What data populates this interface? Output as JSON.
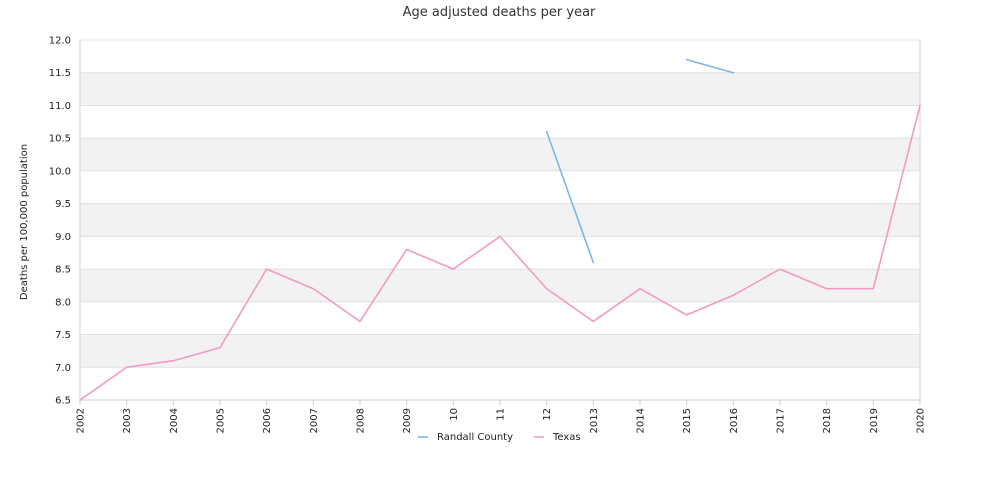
{
  "chart_data": {
    "type": "line",
    "title": "Age adjusted deaths per year",
    "xlabel": "",
    "ylabel": "Deaths per 100,000 population",
    "x": [
      "2002",
      "2003",
      "2004",
      "2005",
      "2006",
      "2007",
      "2008",
      "2009",
      "10",
      "11",
      "12",
      "2013",
      "2014",
      "2015",
      "2016",
      "2017",
      "2018",
      "2019",
      "2020"
    ],
    "ylim": [
      6.5,
      12.0
    ],
    "y_ticks": [
      "6.5",
      "7.0",
      "7.5",
      "8.0",
      "8.5",
      "9.0",
      "9.5",
      "10.0",
      "10.5",
      "11.0",
      "11.5",
      "12.0"
    ],
    "series": [
      {
        "name": "Randall County",
        "color": "#7cb5ec",
        "values": [
          null,
          null,
          null,
          null,
          null,
          null,
          null,
          null,
          null,
          null,
          10.6,
          8.6,
          null,
          11.7,
          11.5,
          null,
          null,
          null,
          null
        ]
      },
      {
        "name": "Texas",
        "color": "#f19ac6",
        "values": [
          6.5,
          7.0,
          7.1,
          7.3,
          8.5,
          8.2,
          7.7,
          8.8,
          8.5,
          9.0,
          8.2,
          7.7,
          8.2,
          7.8,
          8.1,
          8.5,
          8.2,
          8.2,
          11.0
        ]
      }
    ],
    "grid": true,
    "band_color": "#f2f2f2",
    "legend_position": "bottom-center"
  }
}
